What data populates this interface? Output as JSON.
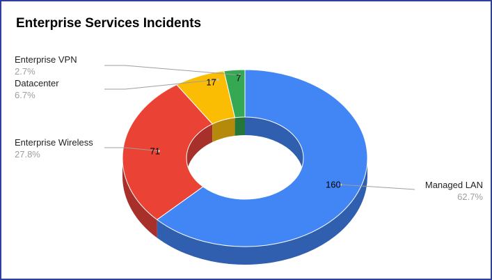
{
  "chart_data": {
    "type": "pie",
    "title": "Enterprise Services Incidents",
    "style": "3d-donut",
    "slices": [
      {
        "label": "Managed LAN",
        "value": 160,
        "percent": "62.7%",
        "color": "#4285f4",
        "side_color": "#2f5fae"
      },
      {
        "label": "Enterprise Wireless",
        "value": 71,
        "percent": "27.8%",
        "color": "#ea4335",
        "side_color": "#a8302a"
      },
      {
        "label": "Datacenter",
        "value": 17,
        "percent": "6.7%",
        "color": "#fbbc04",
        "side_color": "#b58a0a"
      },
      {
        "label": "Enterprise VPN",
        "value": 7,
        "percent": "2.7%",
        "color": "#34a853",
        "side_color": "#24763b"
      }
    ]
  }
}
